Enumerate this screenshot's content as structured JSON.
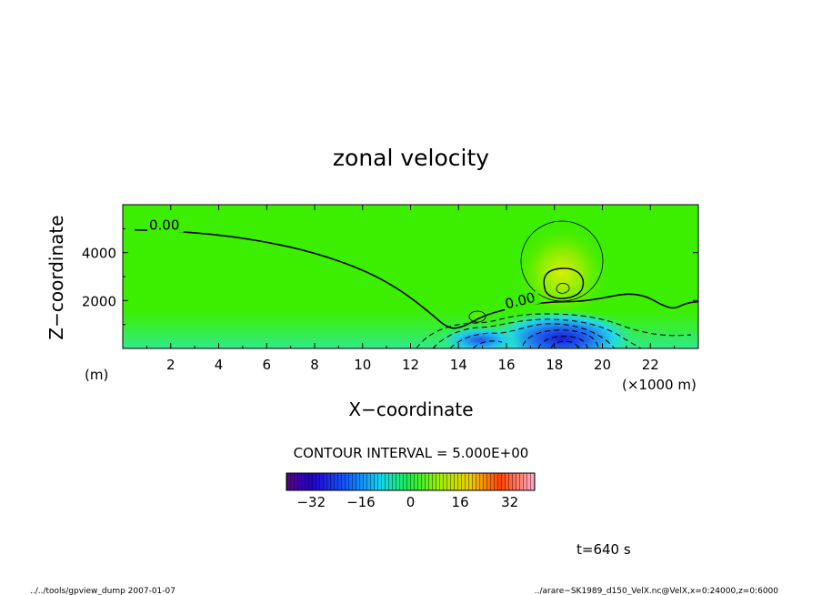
{
  "chart_data": {
    "type": "heatmap",
    "title": "zonal velocity",
    "xlabel": "X−coordinate",
    "ylabel": "Z−coordinate",
    "x_unit": "(×1000 m)",
    "y_unit": "(m)",
    "xlim": [
      0,
      24
    ],
    "ylim": [
      0,
      6000
    ],
    "x_ticks": [
      2,
      4,
      6,
      8,
      10,
      12,
      14,
      16,
      18,
      20,
      22
    ],
    "x_tick_labels": [
      "2",
      "4",
      "6",
      "8",
      "10",
      "12",
      "14",
      "16",
      "18",
      "20",
      "22"
    ],
    "y_ticks": [
      2000,
      4000
    ],
    "y_tick_labels": [
      "2000",
      "4000"
    ],
    "contour_interval_text": "CONTOUR INTERVAL = 5.000E+00",
    "contour_labels": [
      {
        "text": "0.00",
        "x": 1.1,
        "y": 4950
      },
      {
        "text": "0.00",
        "x": 16.0,
        "y": 1650
      }
    ],
    "zero_contour": [
      [
        0.5,
        4950
      ],
      [
        2,
        4900
      ],
      [
        4,
        4750
      ],
      [
        6,
        4450
      ],
      [
        8,
        4000
      ],
      [
        10,
        3300
      ],
      [
        11.5,
        2500
      ],
      [
        12.8,
        1500
      ],
      [
        13.6,
        800
      ],
      [
        14.2,
        900
      ],
      [
        15,
        1350
      ],
      [
        16,
        1650
      ],
      [
        17,
        1850
      ],
      [
        18,
        1950
      ],
      [
        19,
        1950
      ],
      [
        20,
        2100
      ],
      [
        21,
        2300
      ],
      [
        21.8,
        2200
      ],
      [
        22.5,
        1800
      ],
      [
        23,
        1650
      ],
      [
        23.5,
        1900
      ],
      [
        24,
        1950
      ]
    ],
    "positive_features": [
      {
        "x": 18.3,
        "y": 2800,
        "peak": 10
      },
      {
        "x": 14.8,
        "y": 1350,
        "peak": 4
      }
    ],
    "negative_features": [
      {
        "x": 18.3,
        "y": 500,
        "peak": -30
      },
      {
        "x": 15.0,
        "y": 400,
        "peak": -18
      }
    ],
    "colorbar": {
      "range": [
        -40,
        40
      ],
      "ticks": [
        -32,
        -16,
        0,
        16,
        32
      ],
      "tick_labels": [
        "−32",
        "−16",
        "0",
        "16",
        "32"
      ]
    },
    "time_label": "t=640 s"
  },
  "footer": {
    "left": "../../tools/gpview_dump  2007-01-07",
    "right": "../arare−SK1989_d150_VelX.nc@VelX,x=0:24000,z=0:6000"
  }
}
